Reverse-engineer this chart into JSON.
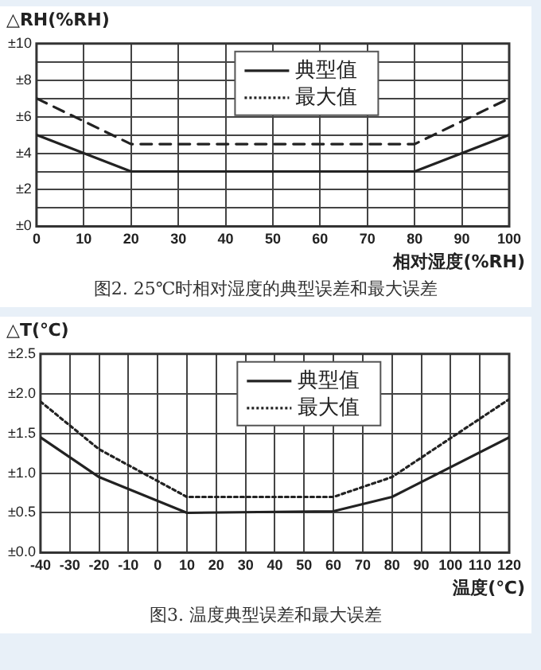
{
  "chart_data": [
    {
      "type": "line",
      "xlabel": "相对湿度(%RH)",
      "ylabel": "△RH(%RH)",
      "annotations": [
        "图2. 25℃时相对湿度的典型误差和最大误差"
      ],
      "xlim": [
        0,
        100
      ],
      "xticks": [
        0,
        10,
        20,
        30,
        40,
        50,
        60,
        70,
        80,
        90,
        100
      ],
      "ylim": [
        0,
        10
      ],
      "yticks": [
        {
          "value": 0,
          "label": "±0"
        },
        {
          "value": 1,
          "label": null
        },
        {
          "value": 2,
          "label": "±2"
        },
        {
          "value": 3,
          "label": null
        },
        {
          "value": 4,
          "label": "±4"
        },
        {
          "value": 5,
          "label": null
        },
        {
          "value": 6,
          "label": "±6"
        },
        {
          "value": 7,
          "label": null
        },
        {
          "value": 8,
          "label": "±8"
        },
        {
          "value": 9,
          "label": null
        },
        {
          "value": 10,
          "label": "±10"
        }
      ],
      "grid": true,
      "legend": "top",
      "marker": "none",
      "series": [
        {
          "name": "典型值",
          "color": "#222222",
          "line_style": "solid",
          "x": [
            0,
            20,
            80,
            100
          ],
          "values": [
            5,
            3,
            3,
            5
          ]
        },
        {
          "name": "最大值",
          "color": "#222222",
          "line_style": "dashed",
          "x": [
            0,
            20,
            80,
            100
          ],
          "values": [
            7,
            4.5,
            4.5,
            7
          ]
        }
      ]
    },
    {
      "type": "line",
      "xlabel": "温度(℃)",
      "ylabel": "△T(℃)",
      "annotations": [
        "图3. 温度典型误差和最大误差"
      ],
      "xlim": [
        -40,
        120
      ],
      "xticks": [
        -40,
        -30,
        -20,
        -10,
        0,
        10,
        20,
        30,
        40,
        50,
        60,
        70,
        80,
        90,
        100,
        110,
        120
      ],
      "ylim": [
        0,
        2.5
      ],
      "yticks": [
        {
          "value": 0,
          "label": "±0.0"
        },
        {
          "value": 0.5,
          "label": "±0.5"
        },
        {
          "value": 1,
          "label": "±1.0"
        },
        {
          "value": 1.5,
          "label": "±1.5"
        },
        {
          "value": 2,
          "label": "±2.0"
        },
        {
          "value": 2.5,
          "label": "±2.5"
        }
      ],
      "grid": true,
      "legend": "top",
      "marker": "none",
      "series": [
        {
          "name": "典型值",
          "color": "#222222",
          "line_style": "solid",
          "x": [
            -40,
            -20,
            10,
            60,
            80,
            120
          ],
          "values": [
            1.45,
            0.95,
            0.5,
            0.52,
            0.7,
            1.45
          ]
        },
        {
          "name": "最大值",
          "color": "#222222",
          "line_style": "dotted",
          "x": [
            -40,
            -20,
            10,
            60,
            80,
            120
          ],
          "values": [
            1.9,
            1.3,
            0.7,
            0.7,
            0.95,
            1.93
          ]
        }
      ]
    }
  ]
}
